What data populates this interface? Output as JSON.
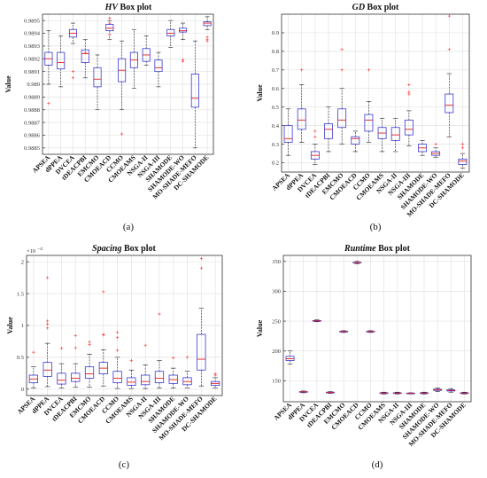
{
  "chart_data": [
    {
      "type": "box",
      "title_metric": "HV",
      "title_suffix": " Box plot",
      "ylabel": "Value",
      "panel_label": "(a)",
      "grid": true,
      "ylim": [
        0.98845,
        0.98955
      ],
      "yticks": [
        0.9885,
        0.9886,
        0.9887,
        0.9888,
        0.9889,
        0.989,
        0.9891,
        0.9892,
        0.9893,
        0.9894,
        0.9895
      ],
      "ytick_labels": [
        "0.9885",
        "0.9886",
        "0.9887",
        "0.9888",
        "0.9889",
        "0.989",
        "0.9891",
        "0.9892",
        "0.9893",
        "0.9894",
        "0.9895"
      ],
      "categories": [
        "APSEA",
        "dPPEA",
        "DVCEA",
        "tDEACPBI",
        "EMCMO",
        "CMOEACD",
        "CCMO",
        "CMOEAMS",
        "NSGA-II",
        "NSGA-III",
        "SHAMODE",
        "SHAMODE-WO",
        "MO-SHADE-MEFO",
        "DC-SHAMODE"
      ],
      "boxes": [
        {
          "whislo": 0.989,
          "q1": 0.98915,
          "med": 0.9892,
          "q3": 0.98925,
          "whishi": 0.98942,
          "fliers": [
            0.98885
          ]
        },
        {
          "whislo": 0.98898,
          "q1": 0.98912,
          "med": 0.98917,
          "q3": 0.98925,
          "whishi": 0.98938,
          "fliers": []
        },
        {
          "whislo": 0.98932,
          "q1": 0.98937,
          "med": 0.9894,
          "q3": 0.98943,
          "whishi": 0.98948,
          "fliers": [
            0.9891,
            0.98905
          ]
        },
        {
          "whislo": 0.98905,
          "q1": 0.98917,
          "med": 0.98924,
          "q3": 0.98927,
          "whishi": 0.98935,
          "fliers": [
            0.98925
          ]
        },
        {
          "whislo": 0.9888,
          "q1": 0.98898,
          "med": 0.98904,
          "q3": 0.98913,
          "whishi": 0.98923,
          "fliers": []
        },
        {
          "whislo": 0.98935,
          "q1": 0.98942,
          "med": 0.98944,
          "q3": 0.98947,
          "whishi": 0.9895,
          "fliers": [
            0.98952,
            0.98948,
            0.98939
          ]
        },
        {
          "whislo": 0.9888,
          "q1": 0.98902,
          "med": 0.98911,
          "q3": 0.9892,
          "whishi": 0.98934,
          "fliers": [
            0.98861
          ]
        },
        {
          "whislo": 0.98897,
          "q1": 0.98913,
          "med": 0.98919,
          "q3": 0.98925,
          "whishi": 0.98943,
          "fliers": []
        },
        {
          "whislo": 0.98915,
          "q1": 0.98918,
          "med": 0.98923,
          "q3": 0.98928,
          "whishi": 0.98938,
          "fliers": []
        },
        {
          "whislo": 0.98898,
          "q1": 0.9891,
          "med": 0.98913,
          "q3": 0.98919,
          "whishi": 0.98925,
          "fliers": []
        },
        {
          "whislo": 0.98929,
          "q1": 0.98938,
          "med": 0.9894,
          "q3": 0.98943,
          "whishi": 0.9895,
          "fliers": []
        },
        {
          "whislo": 0.98935,
          "q1": 0.98941,
          "med": 0.98942,
          "q3": 0.98944,
          "whishi": 0.98948,
          "fliers": [
            0.98919,
            0.98918
          ]
        },
        {
          "whislo": 0.9885,
          "q1": 0.98882,
          "med": 0.98889,
          "q3": 0.98908,
          "whishi": 0.98934,
          "fliers": []
        },
        {
          "whislo": 0.98943,
          "q1": 0.98946,
          "med": 0.98948,
          "q3": 0.98949,
          "whishi": 0.98953,
          "fliers": [
            0.98937,
            0.98935,
            0.98934
          ]
        }
      ]
    },
    {
      "type": "box",
      "title_metric": "GD",
      "title_suffix": " Box plot",
      "ylabel": "Value",
      "panel_label": "(b)",
      "grid": true,
      "ylim": [
        0.15,
        1.0
      ],
      "yticks": [
        0.2,
        0.3,
        0.4,
        0.5,
        0.6,
        0.7,
        0.8,
        0.9
      ],
      "ytick_labels": [
        "0.2",
        "0.3",
        "0.4",
        "0.5",
        "0.6",
        "0.7",
        "0.8",
        "0.9"
      ],
      "categories": [
        "APSEA",
        "dPPEA",
        "DVCEA",
        "tDEACPBI",
        "EMCMO",
        "CMOEACD",
        "CCMO",
        "CMOEAMS",
        "NSGA-II",
        "NSGA-III",
        "SHAMODE",
        "SHAMODE-WO",
        "MO-SHADE-MEFO",
        "DC-SHAMODE"
      ],
      "boxes": [
        {
          "whislo": 0.24,
          "q1": 0.31,
          "med": 0.33,
          "q3": 0.4,
          "whishi": 0.49,
          "fliers": []
        },
        {
          "whislo": 0.31,
          "q1": 0.38,
          "med": 0.43,
          "q3": 0.49,
          "whishi": 0.62,
          "fliers": [
            0.7
          ]
        },
        {
          "whislo": 0.19,
          "q1": 0.22,
          "med": 0.24,
          "q3": 0.26,
          "whishi": 0.3,
          "fliers": [
            0.34,
            0.37
          ]
        },
        {
          "whislo": 0.26,
          "q1": 0.33,
          "med": 0.38,
          "q3": 0.41,
          "whishi": 0.5,
          "fliers": []
        },
        {
          "whislo": 0.3,
          "q1": 0.39,
          "med": 0.43,
          "q3": 0.49,
          "whishi": 0.6,
          "fliers": [
            0.81,
            0.7
          ]
        },
        {
          "whislo": 0.26,
          "q1": 0.3,
          "med": 0.33,
          "q3": 0.34,
          "whishi": 0.37,
          "fliers": []
        },
        {
          "whislo": 0.31,
          "q1": 0.37,
          "med": 0.43,
          "q3": 0.46,
          "whishi": 0.53,
          "fliers": [
            0.7
          ]
        },
        {
          "whislo": 0.26,
          "q1": 0.33,
          "med": 0.36,
          "q3": 0.39,
          "whishi": 0.44,
          "fliers": []
        },
        {
          "whislo": 0.26,
          "q1": 0.32,
          "med": 0.35,
          "q3": 0.39,
          "whishi": 0.44,
          "fliers": []
        },
        {
          "whislo": 0.29,
          "q1": 0.35,
          "med": 0.38,
          "q3": 0.43,
          "whishi": 0.48,
          "fliers": [
            0.57,
            0.58,
            0.62
          ]
        },
        {
          "whislo": 0.24,
          "q1": 0.26,
          "med": 0.28,
          "q3": 0.3,
          "whishi": 0.32,
          "fliers": []
        },
        {
          "whislo": 0.23,
          "q1": 0.24,
          "med": 0.25,
          "q3": 0.26,
          "whishi": 0.28,
          "fliers": [
            0.3
          ]
        },
        {
          "whislo": 0.34,
          "q1": 0.47,
          "med": 0.51,
          "q3": 0.57,
          "whishi": 0.68,
          "fliers": [
            0.99,
            0.81
          ]
        },
        {
          "whislo": 0.17,
          "q1": 0.19,
          "med": 0.21,
          "q3": 0.22,
          "whishi": 0.25,
          "fliers": [
            0.3,
            0.28
          ]
        }
      ]
    },
    {
      "type": "box",
      "title_metric": "Spacing",
      "title_suffix": " Box plot",
      "ylabel": "Value",
      "panel_label": "(c)",
      "grid": true,
      "axis_multiplier": "×10",
      "axis_exponent": "−4",
      "ylim": [
        -0.1,
        2.1
      ],
      "yticks": [
        0,
        0.5,
        1,
        1.5,
        2
      ],
      "ytick_labels": [
        "0",
        "0.5",
        "1",
        "1.5",
        "2"
      ],
      "categories": [
        "APSEA",
        "dPPEA",
        "DVCEA",
        "tDEACPBI",
        "EMCMO",
        "CMOEACD",
        "CCMO",
        "CMOEAMS",
        "NSGA-II",
        "NSGA-III",
        "SHAMODE",
        "SHAMODE-WO",
        "MO-SHADE-MEFO",
        "DC-SHAMODE"
      ],
      "boxes": [
        {
          "whislo": 0.02,
          "q1": 0.1,
          "med": 0.16,
          "q3": 0.22,
          "whishi": 0.35,
          "fliers": [
            0.58
          ]
        },
        {
          "whislo": 0.04,
          "q1": 0.2,
          "med": 0.3,
          "q3": 0.42,
          "whishi": 0.72,
          "fliers": [
            1.75,
            1.07,
            1.02,
            0.96
          ]
        },
        {
          "whislo": 0.02,
          "q1": 0.08,
          "med": 0.14,
          "q3": 0.25,
          "whishi": 0.4,
          "fliers": [
            0.64
          ]
        },
        {
          "whislo": 0.03,
          "q1": 0.12,
          "med": 0.17,
          "q3": 0.25,
          "whishi": 0.4,
          "fliers": [
            0.84,
            0.65
          ]
        },
        {
          "whislo": 0.03,
          "q1": 0.17,
          "med": 0.24,
          "q3": 0.35,
          "whishi": 0.55,
          "fliers": [
            0.74,
            0.7
          ]
        },
        {
          "whislo": 0.05,
          "q1": 0.24,
          "med": 0.33,
          "q3": 0.42,
          "whishi": 0.62,
          "fliers": [
            1.53,
            0.86,
            0.85
          ]
        },
        {
          "whislo": 0.01,
          "q1": 0.1,
          "med": 0.17,
          "q3": 0.28,
          "whishi": 0.5,
          "fliers": [
            0.89,
            0.81,
            0.61
          ]
        },
        {
          "whislo": 0.01,
          "q1": 0.06,
          "med": 0.11,
          "q3": 0.18,
          "whishi": 0.3,
          "fliers": [
            0.45
          ]
        },
        {
          "whislo": 0.01,
          "q1": 0.07,
          "med": 0.12,
          "q3": 0.22,
          "whishi": 0.38,
          "fliers": [
            0.69
          ]
        },
        {
          "whislo": 0.02,
          "q1": 0.1,
          "med": 0.17,
          "q3": 0.28,
          "whishi": 0.45,
          "fliers": [
            1.18
          ]
        },
        {
          "whislo": 0.02,
          "q1": 0.09,
          "med": 0.15,
          "q3": 0.22,
          "whishi": 0.33,
          "fliers": [
            0.49
          ]
        },
        {
          "whislo": 0.02,
          "q1": 0.07,
          "med": 0.12,
          "q3": 0.18,
          "whishi": 0.28,
          "fliers": [
            0.5
          ]
        },
        {
          "whislo": 0.05,
          "q1": 0.3,
          "med": 0.47,
          "q3": 0.86,
          "whishi": 1.27,
          "fliers": [
            2.05,
            1.9
          ]
        },
        {
          "whislo": 0.02,
          "q1": 0.06,
          "med": 0.09,
          "q3": 0.12,
          "whishi": 0.18,
          "fliers": [
            0.24,
            0.22
          ]
        }
      ]
    },
    {
      "type": "box",
      "title_metric": "Runtime",
      "title_suffix": " Box plot",
      "ylabel": "Value",
      "panel_label": "(d)",
      "grid": true,
      "ylim": [
        115,
        360
      ],
      "yticks": [
        150,
        200,
        250,
        300,
        350
      ],
      "ytick_labels": [
        "150",
        "200",
        "250",
        "300",
        "350"
      ],
      "categories": [
        "APSEA",
        "dPPEA",
        "DVCEA",
        "tDEACPBI",
        "EMCMO",
        "CMOEACD",
        "CCMO",
        "CMOEAMS",
        "NSGA-II",
        "NSGA-III",
        "SHAMODE",
        "SHAMODE-WO",
        "MO-SHADE-MEFO",
        "DC-SHAMODE"
      ],
      "boxes": [
        {
          "whislo": 178,
          "q1": 184,
          "med": 187,
          "q3": 191,
          "whishi": 200,
          "fliers": []
        },
        {
          "whislo": 130,
          "q1": 131,
          "med": 131.5,
          "q3": 132,
          "whishi": 133,
          "fliers": []
        },
        {
          "whislo": 249,
          "q1": 250,
          "med": 250.5,
          "q3": 251,
          "whishi": 252,
          "fliers": []
        },
        {
          "whislo": 129,
          "q1": 130,
          "med": 130.5,
          "q3": 131,
          "whishi": 132,
          "fliers": []
        },
        {
          "whislo": 231,
          "q1": 232,
          "med": 232.5,
          "q3": 233,
          "whishi": 234,
          "fliers": []
        },
        {
          "whislo": 346,
          "q1": 347.5,
          "med": 348,
          "q3": 348.5,
          "whishi": 350,
          "fliers": []
        },
        {
          "whislo": 231,
          "q1": 232,
          "med": 232.5,
          "q3": 233,
          "whishi": 234,
          "fliers": []
        },
        {
          "whislo": 128,
          "q1": 129,
          "med": 129.5,
          "q3": 130,
          "whishi": 131,
          "fliers": []
        },
        {
          "whislo": 128,
          "q1": 129,
          "med": 129.5,
          "q3": 130,
          "whishi": 131,
          "fliers": []
        },
        {
          "whislo": 128,
          "q1": 128.5,
          "med": 129,
          "q3": 129.5,
          "whishi": 130,
          "fliers": []
        },
        {
          "whislo": 128,
          "q1": 129,
          "med": 129.5,
          "q3": 130,
          "whishi": 131,
          "fliers": []
        },
        {
          "whislo": 132,
          "q1": 134,
          "med": 135,
          "q3": 136,
          "whishi": 138,
          "fliers": []
        },
        {
          "whislo": 131,
          "q1": 133,
          "med": 134,
          "q3": 135,
          "whishi": 137,
          "fliers": []
        },
        {
          "whislo": 128,
          "q1": 129,
          "med": 129.5,
          "q3": 130,
          "whishi": 131,
          "fliers": []
        }
      ]
    }
  ],
  "colors": {
    "box": "#3a3ad6",
    "median": "#e02020",
    "whisker": "#222222",
    "flier": "#ff2a2a",
    "grid": "#e3e3e3",
    "axis": "#333333"
  }
}
